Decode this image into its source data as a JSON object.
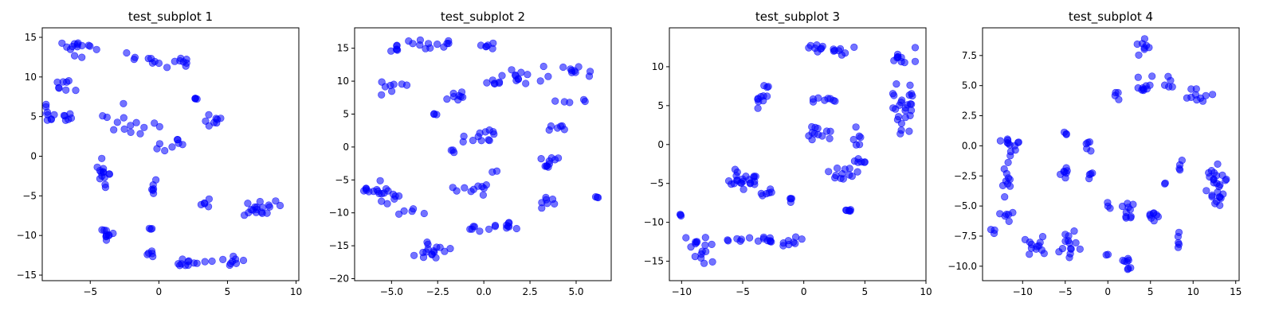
{
  "chart_data": [
    {
      "type": "scatter",
      "title": "test_subplot 1",
      "xlim": [
        -8.5,
        10.2
      ],
      "ylim": [
        -15.7,
        16.2
      ],
      "xticks": [
        -5,
        0,
        5,
        10
      ],
      "yticks": [
        -15,
        -10,
        -5,
        0,
        5,
        10,
        15
      ],
      "marker_color": "#0000ff",
      "marker_alpha": 0.55,
      "clusters": [
        {
          "center": [
            -5.8,
            13.6
          ],
          "spread": [
            0.9,
            0.8
          ],
          "n": 14
        },
        {
          "center": [
            -6.9,
            8.8
          ],
          "spread": [
            0.6,
            0.9
          ],
          "n": 8
        },
        {
          "center": [
            -8.0,
            5.3
          ],
          "spread": [
            0.5,
            0.9
          ],
          "n": 9
        },
        {
          "center": [
            -6.7,
            4.4
          ],
          "spread": [
            0.4,
            0.8
          ],
          "n": 6
        },
        {
          "center": [
            -1.0,
            12.4
          ],
          "spread": [
            1.2,
            0.6
          ],
          "n": 8
        },
        {
          "center": [
            1.5,
            11.8
          ],
          "spread": [
            0.9,
            0.5
          ],
          "n": 8
        },
        {
          "center": [
            -2.0,
            4.4
          ],
          "spread": [
            1.5,
            1.6
          ],
          "n": 14
        },
        {
          "center": [
            2.6,
            7.3
          ],
          "spread": [
            0.2,
            0.2
          ],
          "n": 4
        },
        {
          "center": [
            4.0,
            4.6
          ],
          "spread": [
            0.5,
            0.6
          ],
          "n": 8
        },
        {
          "center": [
            0.8,
            1.4
          ],
          "spread": [
            1.0,
            0.5
          ],
          "n": 8
        },
        {
          "center": [
            -4.0,
            -2.1
          ],
          "spread": [
            0.5,
            1.3
          ],
          "n": 14
        },
        {
          "center": [
            -0.5,
            -3.6
          ],
          "spread": [
            0.2,
            0.8
          ],
          "n": 6
        },
        {
          "center": [
            3.5,
            -5.8
          ],
          "spread": [
            0.3,
            0.4
          ],
          "n": 5
        },
        {
          "center": [
            -3.9,
            -9.6
          ],
          "spread": [
            0.4,
            0.7
          ],
          "n": 10
        },
        {
          "center": [
            -0.6,
            -9.2
          ],
          "spread": [
            0.2,
            0.1
          ],
          "n": 3
        },
        {
          "center": [
            -0.6,
            -12.0
          ],
          "spread": [
            0.3,
            0.5
          ],
          "n": 5
        },
        {
          "center": [
            2.3,
            -13.5
          ],
          "spread": [
            1.6,
            0.5
          ],
          "n": 12
        },
        {
          "center": [
            5.5,
            -13.3
          ],
          "spread": [
            1.0,
            0.5
          ],
          "n": 8
        },
        {
          "center": [
            7.5,
            -6.5
          ],
          "spread": [
            1.4,
            0.8
          ],
          "n": 18
        }
      ]
    },
    {
      "type": "scatter",
      "title": "test_subplot 2",
      "xlim": [
        -7.0,
        6.9
      ],
      "ylim": [
        -20.3,
        18.1
      ],
      "xticks": [
        -5.0,
        -2.5,
        0.0,
        2.5,
        5.0
      ],
      "yticks": [
        -20,
        -15,
        -10,
        -5,
        0,
        5,
        10,
        15
      ],
      "marker_color": "#0000ff",
      "marker_alpha": 0.55,
      "clusters": [
        {
          "center": [
            -2.8,
            15.4
          ],
          "spread": [
            1.2,
            0.6
          ],
          "n": 12
        },
        {
          "center": [
            0.0,
            15.5
          ],
          "spread": [
            0.5,
            0.6
          ],
          "n": 6
        },
        {
          "center": [
            -4.8,
            14.8
          ],
          "spread": [
            0.6,
            0.8
          ],
          "n": 6
        },
        {
          "center": [
            -5.0,
            8.9
          ],
          "spread": [
            0.6,
            0.7
          ],
          "n": 8
        },
        {
          "center": [
            2.0,
            10.6
          ],
          "spread": [
            1.5,
            0.8
          ],
          "n": 12
        },
        {
          "center": [
            4.5,
            11.4
          ],
          "spread": [
            0.9,
            0.6
          ],
          "n": 10
        },
        {
          "center": [
            -1.5,
            7.6
          ],
          "spread": [
            0.6,
            0.7
          ],
          "n": 8
        },
        {
          "center": [
            0.0,
            9.6
          ],
          "spread": [
            0.6,
            0.4
          ],
          "n": 6
        },
        {
          "center": [
            -2.7,
            5.0
          ],
          "spread": [
            0.1,
            0.1
          ],
          "n": 3
        },
        {
          "center": [
            4.5,
            6.9
          ],
          "spread": [
            0.8,
            0.3
          ],
          "n": 5
        },
        {
          "center": [
            4.1,
            3.1
          ],
          "spread": [
            0.4,
            0.6
          ],
          "n": 6
        },
        {
          "center": [
            0.0,
            1.5
          ],
          "spread": [
            0.8,
            0.8
          ],
          "n": 12
        },
        {
          "center": [
            -1.5,
            -0.7
          ],
          "spread": [
            0.4,
            0.3
          ],
          "n": 3
        },
        {
          "center": [
            -6.2,
            -6.2
          ],
          "spread": [
            0.3,
            0.6
          ],
          "n": 6
        },
        {
          "center": [
            -5.3,
            -7.2
          ],
          "spread": [
            0.5,
            1.5
          ],
          "n": 14
        },
        {
          "center": [
            -3.9,
            -9.9
          ],
          "spread": [
            0.5,
            0.5
          ],
          "n": 5
        },
        {
          "center": [
            -0.7,
            -6.2
          ],
          "spread": [
            0.7,
            0.8
          ],
          "n": 10
        },
        {
          "center": [
            0.6,
            -3.8
          ],
          "spread": [
            0.2,
            0.2
          ],
          "n": 2
        },
        {
          "center": [
            -0.2,
            -12.4
          ],
          "spread": [
            1.5,
            0.5
          ],
          "n": 12
        },
        {
          "center": [
            1.1,
            -11.5
          ],
          "spread": [
            0.2,
            0.3
          ],
          "n": 3
        },
        {
          "center": [
            -2.8,
            -16.0
          ],
          "spread": [
            0.7,
            1.1
          ],
          "n": 16
        },
        {
          "center": [
            3.3,
            -2.5
          ],
          "spread": [
            0.6,
            0.6
          ],
          "n": 10
        },
        {
          "center": [
            3.4,
            -8.3
          ],
          "spread": [
            0.3,
            0.7
          ],
          "n": 7
        },
        {
          "center": [
            6.2,
            -7.5
          ],
          "spread": [
            0.1,
            0.2
          ],
          "n": 3
        }
      ]
    },
    {
      "type": "scatter",
      "title": "test_subplot 3",
      "xlim": [
        -11.0,
        10.0
      ],
      "ylim": [
        -17.5,
        15.0
      ],
      "xticks": [
        -10,
        -5,
        0,
        5,
        10
      ],
      "yticks": [
        -15,
        -10,
        -5,
        0,
        5,
        10
      ],
      "marker_color": "#0000ff",
      "marker_alpha": 0.55,
      "clusters": [
        {
          "center": [
            1.0,
            12.5
          ],
          "spread": [
            0.7,
            0.5
          ],
          "n": 8
        },
        {
          "center": [
            3.0,
            12.2
          ],
          "spread": [
            0.8,
            0.5
          ],
          "n": 8
        },
        {
          "center": [
            8.0,
            11.4
          ],
          "spread": [
            0.8,
            0.8
          ],
          "n": 10
        },
        {
          "center": [
            8.2,
            4.5
          ],
          "spread": [
            0.8,
            2.4
          ],
          "n": 26
        },
        {
          "center": [
            -3.0,
            7.4
          ],
          "spread": [
            0.2,
            0.2
          ],
          "n": 3
        },
        {
          "center": [
            1.5,
            6.1
          ],
          "spread": [
            0.8,
            0.6
          ],
          "n": 8
        },
        {
          "center": [
            -3.5,
            5.0
          ],
          "spread": [
            0.7,
            1.0
          ],
          "n": 8
        },
        {
          "center": [
            1.2,
            1.4
          ],
          "spread": [
            0.8,
            0.8
          ],
          "n": 12
        },
        {
          "center": [
            4.5,
            0.6
          ],
          "spread": [
            0.3,
            1.3
          ],
          "n": 6
        },
        {
          "center": [
            4.3,
            -2.2
          ],
          "spread": [
            0.5,
            0.4
          ],
          "n": 6
        },
        {
          "center": [
            3.0,
            -3.8
          ],
          "spread": [
            1.0,
            0.7
          ],
          "n": 12
        },
        {
          "center": [
            3.8,
            -8.5
          ],
          "spread": [
            0.6,
            0.2
          ],
          "n": 6
        },
        {
          "center": [
            -5.0,
            -4.6
          ],
          "spread": [
            1.2,
            1.0
          ],
          "n": 22
        },
        {
          "center": [
            -3.0,
            -6.3
          ],
          "spread": [
            0.5,
            0.4
          ],
          "n": 6
        },
        {
          "center": [
            -1.0,
            -7.0
          ],
          "spread": [
            0.3,
            0.3
          ],
          "n": 4
        },
        {
          "center": [
            -10.0,
            -9.1
          ],
          "spread": [
            0.2,
            0.2
          ],
          "n": 3
        },
        {
          "center": [
            -8.4,
            -13.6
          ],
          "spread": [
            0.9,
            1.5
          ],
          "n": 16
        },
        {
          "center": [
            -4.0,
            -12.3
          ],
          "spread": [
            1.6,
            0.5
          ],
          "n": 14
        },
        {
          "center": [
            -1.0,
            -12.3
          ],
          "spread": [
            0.6,
            0.5
          ],
          "n": 8
        }
      ]
    },
    {
      "type": "scatter",
      "title": "test_subplot 4",
      "xlim": [
        -14.7,
        15.4
      ],
      "ylim": [
        -11.2,
        9.8
      ],
      "xticks": [
        -10,
        -5,
        0,
        5,
        10,
        15
      ],
      "yticks": [
        -10.0,
        -7.5,
        -5.0,
        -2.5,
        0.0,
        2.5,
        5.0,
        7.5
      ],
      "marker_color": "#0000ff",
      "marker_alpha": 0.55,
      "clusters": [
        {
          "center": [
            4.2,
            8.2
          ],
          "spread": [
            0.6,
            0.5
          ],
          "n": 8
        },
        {
          "center": [
            4.5,
            5.0
          ],
          "spread": [
            1.0,
            0.6
          ],
          "n": 10
        },
        {
          "center": [
            1.0,
            4.0
          ],
          "spread": [
            0.3,
            0.3
          ],
          "n": 4
        },
        {
          "center": [
            7.3,
            5.2
          ],
          "spread": [
            0.6,
            0.4
          ],
          "n": 5
        },
        {
          "center": [
            10.6,
            3.9
          ],
          "spread": [
            1.2,
            0.6
          ],
          "n": 10
        },
        {
          "center": [
            -11.5,
            0.3
          ],
          "spread": [
            0.8,
            0.8
          ],
          "n": 12
        },
        {
          "center": [
            -5.0,
            1.0
          ],
          "spread": [
            0.2,
            0.1
          ],
          "n": 3
        },
        {
          "center": [
            -2.2,
            0.0
          ],
          "spread": [
            0.6,
            0.4
          ],
          "n": 5
        },
        {
          "center": [
            -11.8,
            -2.7
          ],
          "spread": [
            0.5,
            1.1
          ],
          "n": 10
        },
        {
          "center": [
            -5.2,
            -2.2
          ],
          "spread": [
            0.5,
            0.6
          ],
          "n": 7
        },
        {
          "center": [
            -2.0,
            -2.3
          ],
          "spread": [
            0.4,
            0.3
          ],
          "n": 4
        },
        {
          "center": [
            -12.0,
            -5.8
          ],
          "spread": [
            0.6,
            0.4
          ],
          "n": 6
        },
        {
          "center": [
            -13.5,
            -7.0
          ],
          "spread": [
            0.4,
            0.3
          ],
          "n": 3
        },
        {
          "center": [
            -8.5,
            -8.2
          ],
          "spread": [
            1.0,
            0.6
          ],
          "n": 12
        },
        {
          "center": [
            -4.5,
            -8.2
          ],
          "spread": [
            1.0,
            0.8
          ],
          "n": 14
        },
        {
          "center": [
            0.0,
            -4.8
          ],
          "spread": [
            0.3,
            0.4
          ],
          "n": 3
        },
        {
          "center": [
            2.5,
            -5.5
          ],
          "spread": [
            0.7,
            0.6
          ],
          "n": 10
        },
        {
          "center": [
            5.2,
            -6.0
          ],
          "spread": [
            0.5,
            0.5
          ],
          "n": 8
        },
        {
          "center": [
            2.0,
            -9.7
          ],
          "spread": [
            0.6,
            0.4
          ],
          "n": 8
        },
        {
          "center": [
            0.0,
            -9.0
          ],
          "spread": [
            0.2,
            0.2
          ],
          "n": 2
        },
        {
          "center": [
            8.5,
            -1.9
          ],
          "spread": [
            0.3,
            0.5
          ],
          "n": 4
        },
        {
          "center": [
            8.3,
            -7.6
          ],
          "spread": [
            0.2,
            0.6
          ],
          "n": 5
        },
        {
          "center": [
            6.7,
            -3.1
          ],
          "spread": [
            0.1,
            0.2
          ],
          "n": 2
        },
        {
          "center": [
            12.8,
            -2.6
          ],
          "spread": [
            0.9,
            1.2
          ],
          "n": 18
        },
        {
          "center": [
            13.2,
            -4.6
          ],
          "spread": [
            0.7,
            0.6
          ],
          "n": 8
        }
      ]
    }
  ]
}
